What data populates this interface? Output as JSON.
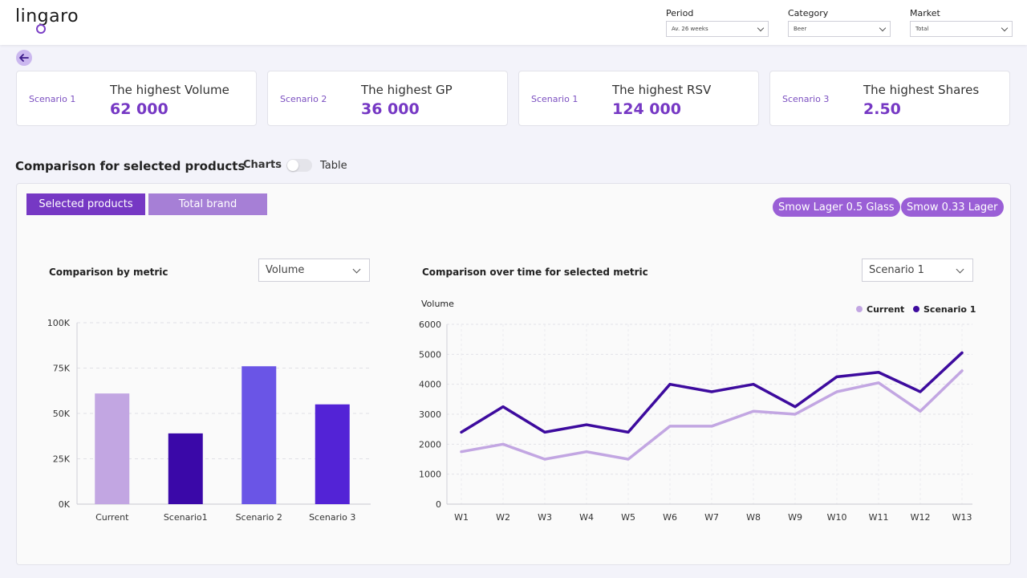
{
  "header": {
    "logo_text": "lingaro",
    "filters": [
      {
        "label": "Period",
        "value": "Av. 26 weeks"
      },
      {
        "label": "Category",
        "value": "Beer"
      },
      {
        "label": "Market",
        "value": "Total"
      }
    ]
  },
  "cards": [
    {
      "scenario": "Scenario 1",
      "title": "The highest Volume",
      "value": "62 000"
    },
    {
      "scenario": "Scenario 2",
      "title": "The highest GP",
      "value": "36 000"
    },
    {
      "scenario": "Scenario 1",
      "title": "The highest RSV",
      "value": "124 000"
    },
    {
      "scenario": "Scenario 3",
      "title": "The highest Shares",
      "value": "2.50"
    }
  ],
  "comparison": {
    "title": "Comparison for selected products",
    "toggle_left": "Charts",
    "toggle_right": "Table",
    "tabs": [
      "Selected products",
      "Total brand"
    ],
    "chips": [
      "Smow Lager 0.5 Glass",
      "Smow 0.33 Lager"
    ],
    "metric_title": "Comparison by metric",
    "metric_dropdown": "Volume",
    "time_title": "Comparison over time for selected metric",
    "scenario_dropdown": "Scenario 1"
  },
  "colors": {
    "accent": "#7638c4",
    "current_line": "#c2a6e2",
    "scenario1_line": "#3d0b9e"
  },
  "chart_data": [
    {
      "type": "bar",
      "categories": [
        "Current",
        "Scenario1",
        "Scenario 2",
        "Scenario 3"
      ],
      "values": [
        61000,
        39000,
        76000,
        55000
      ],
      "colors": [
        "#c2a6e2",
        "#3a08a8",
        "#6a55e6",
        "#5323d6"
      ],
      "ylim": [
        0,
        100000
      ],
      "yticks": [
        "0K",
        "25K",
        "50K",
        "75K",
        "100K"
      ],
      "grid": true
    },
    {
      "type": "line",
      "ylabel": "Volume",
      "x": [
        "W1",
        "W2",
        "W3",
        "W4",
        "W5",
        "W6",
        "W7",
        "W8",
        "W9",
        "W10",
        "W11",
        "W12",
        "W13"
      ],
      "ylim": [
        0,
        6000
      ],
      "yticks": [
        "0",
        "1000",
        "2000",
        "3000",
        "4000",
        "5000",
        "6000"
      ],
      "legend": "top-right",
      "series": [
        {
          "name": "Current",
          "color": "#c2a6e2",
          "values": [
            1750,
            2000,
            1500,
            1750,
            1500,
            2600,
            2600,
            3100,
            3000,
            3750,
            4050,
            3100,
            4450
          ]
        },
        {
          "name": "Scenario 1",
          "color": "#3d0b9e",
          "values": [
            2400,
            3250,
            2400,
            2650,
            2400,
            4000,
            3750,
            4000,
            3250,
            4250,
            4400,
            3750,
            5050
          ]
        }
      ]
    }
  ]
}
